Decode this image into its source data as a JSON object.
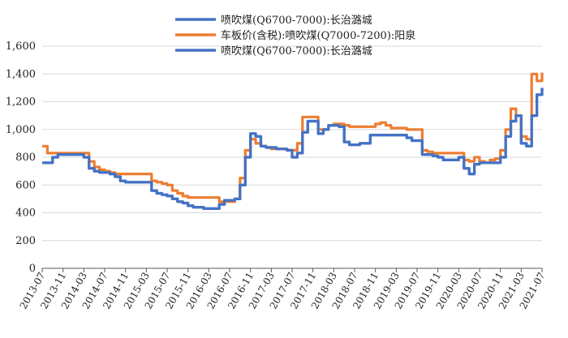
{
  "chart_data": {
    "type": "line",
    "title": "",
    "xlabel": "",
    "ylabel": "",
    "ylim": [
      0,
      1600
    ],
    "yticks": [
      "0",
      "200",
      "400",
      "600",
      "800",
      "1,000",
      "1,200",
      "1,400",
      "1,600"
    ],
    "ytick_values": [
      0,
      200,
      400,
      600,
      800,
      1000,
      1200,
      1400,
      1600
    ],
    "xticks": [
      "2013-07",
      "2013-11",
      "2014-03",
      "2014-07",
      "2014-11",
      "2015-03",
      "2015-07",
      "2015-11",
      "2016-03",
      "2016-07",
      "2016-11",
      "2017-03",
      "2017-07",
      "2017-11",
      "2018-03",
      "2018-07",
      "2018-11",
      "2019-03",
      "2019-07",
      "2019-11",
      "2020-03",
      "2020-07",
      "2020-11",
      "2021-03",
      "2021-07"
    ],
    "grid": "horizontal",
    "legend_position": "top-center",
    "legend": [
      {
        "label": "喷吹煤(Q6700-7000):长治潞城",
        "color": "#4472C4"
      },
      {
        "label": "车板价(含税):喷吹煤(Q7000-7200):阳泉",
        "color": "#ED7D31"
      },
      {
        "label": "喷吹煤(Q6700-7000):长治潞城",
        "color": "#4472C4"
      }
    ],
    "series": [
      {
        "color": "#4472C4",
        "x": [
          "2013-07-01",
          "2013-08-01",
          "2013-09-01",
          "2013-10-01",
          "2013-11-01",
          "2013-12-01",
          "2014-01-01",
          "2014-02-01",
          "2014-03-01",
          "2014-04-01",
          "2014-05-01",
          "2014-06-01",
          "2014-07-01",
          "2014-08-01",
          "2014-09-01",
          "2014-10-01",
          "2014-11-01",
          "2014-12-01",
          "2015-01-01",
          "2015-02-01",
          "2015-03-01",
          "2015-04-01",
          "2015-05-01",
          "2015-06-01",
          "2015-07-01",
          "2015-08-01",
          "2015-09-01",
          "2015-10-01",
          "2015-11-01",
          "2015-12-01",
          "2016-01-01",
          "2016-02-01",
          "2016-03-01",
          "2016-04-01",
          "2016-05-01",
          "2016-06-01",
          "2016-07-01",
          "2016-08-01",
          "2016-09-01",
          "2016-10-01",
          "2016-11-01",
          "2016-12-01",
          "2017-01-01",
          "2017-02-01",
          "2017-03-01",
          "2017-04-01",
          "2017-05-01",
          "2017-06-01",
          "2017-07-01",
          "2017-08-01",
          "2017-09-01",
          "2017-10-01",
          "2017-11-01",
          "2017-12-01",
          "2018-01-01",
          "2018-02-01",
          "2018-03-01",
          "2018-04-01",
          "2018-05-01",
          "2018-06-01",
          "2018-07-01",
          "2018-08-01",
          "2018-09-01",
          "2018-10-01",
          "2018-11-01",
          "2018-12-01",
          "2019-01-01",
          "2019-02-01",
          "2019-03-01",
          "2019-04-01",
          "2019-05-01",
          "2019-06-01",
          "2019-07-01",
          "2019-08-01",
          "2019-09-01",
          "2019-10-01",
          "2019-11-01",
          "2019-12-01",
          "2020-01-01",
          "2020-02-01",
          "2020-03-01",
          "2020-04-01",
          "2020-05-01",
          "2020-06-01",
          "2020-07-01",
          "2020-08-01",
          "2020-09-01",
          "2020-10-01",
          "2020-11-01",
          "2020-12-01",
          "2021-01-01",
          "2021-02-01",
          "2021-03-01",
          "2021-04-01",
          "2021-05-01",
          "2021-06-01",
          "2021-07-01"
        ],
        "values": [
          760,
          760,
          800,
          820,
          820,
          820,
          820,
          820,
          800,
          720,
          700,
          690,
          690,
          680,
          660,
          630,
          620,
          620,
          620,
          620,
          620,
          560,
          540,
          530,
          520,
          500,
          480,
          470,
          450,
          440,
          440,
          430,
          430,
          430,
          460,
          490,
          490,
          500,
          600,
          800,
          970,
          950,
          880,
          870,
          870,
          860,
          860,
          850,
          800,
          830,
          980,
          1060,
          1060,
          970,
          1000,
          1030,
          1030,
          1020,
          910,
          890,
          890,
          900,
          900,
          960,
          960,
          960,
          960,
          960,
          960,
          960,
          940,
          920,
          920,
          820,
          820,
          810,
          800,
          780,
          780,
          780,
          800,
          720,
          680,
          750,
          760,
          760,
          760,
          760,
          800,
          950,
          1060,
          1100,
          900,
          880,
          1100,
          1250,
          1300
        ]
      },
      {
        "color": "#ED7D31",
        "x": [
          "2013-07-01",
          "2013-08-01",
          "2013-09-01",
          "2013-10-01",
          "2013-11-01",
          "2013-12-01",
          "2014-01-01",
          "2014-02-01",
          "2014-03-01",
          "2014-04-01",
          "2014-05-01",
          "2014-06-01",
          "2014-07-01",
          "2014-08-01",
          "2014-09-01",
          "2014-10-01",
          "2014-11-01",
          "2014-12-01",
          "2015-01-01",
          "2015-02-01",
          "2015-03-01",
          "2015-04-01",
          "2015-05-01",
          "2015-06-01",
          "2015-07-01",
          "2015-08-01",
          "2015-09-01",
          "2015-10-01",
          "2015-11-01",
          "2015-12-01",
          "2016-01-01",
          "2016-02-01",
          "2016-03-01",
          "2016-04-01",
          "2016-05-01",
          "2016-06-01",
          "2016-07-01",
          "2016-08-01",
          "2016-09-01",
          "2016-10-01",
          "2016-11-01",
          "2016-12-01",
          "2017-01-01",
          "2017-02-01",
          "2017-03-01",
          "2017-04-01",
          "2017-05-01",
          "2017-06-01",
          "2017-07-01",
          "2017-08-01",
          "2017-09-01",
          "2017-10-01",
          "2017-11-01",
          "2017-12-01",
          "2018-01-01",
          "2018-02-01",
          "2018-03-01",
          "2018-04-01",
          "2018-05-01",
          "2018-06-01",
          "2018-07-01",
          "2018-08-01",
          "2018-09-01",
          "2018-10-01",
          "2018-11-01",
          "2018-12-01",
          "2019-01-01",
          "2019-02-01",
          "2019-03-01",
          "2019-04-01",
          "2019-05-01",
          "2019-06-01",
          "2019-07-01",
          "2019-08-01",
          "2019-09-01",
          "2019-10-01",
          "2019-11-01",
          "2019-12-01",
          "2020-01-01",
          "2020-02-01",
          "2020-03-01",
          "2020-04-01",
          "2020-05-01",
          "2020-06-01",
          "2020-07-01",
          "2020-08-01",
          "2020-09-01",
          "2020-10-01",
          "2020-11-01",
          "2020-12-01",
          "2021-01-01",
          "2021-02-01",
          "2021-03-01",
          "2021-04-01",
          "2021-05-01",
          "2021-06-01",
          "2021-07-01"
        ],
        "values": [
          880,
          830,
          830,
          830,
          830,
          830,
          830,
          830,
          830,
          770,
          730,
          710,
          700,
          690,
          680,
          680,
          680,
          680,
          680,
          680,
          680,
          630,
          620,
          610,
          600,
          560,
          540,
          520,
          510,
          510,
          510,
          510,
          510,
          510,
          480,
          480,
          480,
          500,
          650,
          850,
          930,
          900,
          880,
          870,
          860,
          860,
          860,
          850,
          850,
          900,
          1090,
          1090,
          1090,
          1000,
          1000,
          1030,
          1040,
          1040,
          1030,
          1020,
          1020,
          1020,
          1020,
          1020,
          1040,
          1050,
          1030,
          1010,
          1010,
          1010,
          1000,
          1000,
          1000,
          850,
          840,
          830,
          830,
          830,
          830,
          830,
          830,
          780,
          770,
          800,
          770,
          760,
          780,
          790,
          850,
          1000,
          1150,
          1100,
          950,
          930,
          1400,
          1350,
          1410
        ]
      },
      {
        "color": "#4472C4",
        "x": [
          "2013-07-01",
          "2013-08-01",
          "2013-09-01",
          "2013-10-01",
          "2013-11-01",
          "2013-12-01",
          "2014-01-01",
          "2014-02-01",
          "2014-03-01",
          "2014-04-01",
          "2014-05-01",
          "2014-06-01",
          "2014-07-01",
          "2014-08-01",
          "2014-09-01",
          "2014-10-01",
          "2014-11-01",
          "2014-12-01",
          "2015-01-01",
          "2015-02-01",
          "2015-03-01",
          "2015-04-01",
          "2015-05-01",
          "2015-06-01",
          "2015-07-01",
          "2015-08-01",
          "2015-09-01",
          "2015-10-01",
          "2015-11-01",
          "2015-12-01",
          "2016-01-01",
          "2016-02-01",
          "2016-03-01",
          "2016-04-01",
          "2016-05-01",
          "2016-06-01",
          "2016-07-01",
          "2016-08-01",
          "2016-09-01",
          "2016-10-01",
          "2016-11-01",
          "2016-12-01",
          "2017-01-01",
          "2017-02-01",
          "2017-03-01",
          "2017-04-01",
          "2017-05-01",
          "2017-06-01",
          "2017-07-01",
          "2017-08-01",
          "2017-09-01",
          "2017-10-01",
          "2017-11-01",
          "2017-12-01",
          "2018-01-01",
          "2018-02-01",
          "2018-03-01",
          "2018-04-01",
          "2018-05-01",
          "2018-06-01",
          "2018-07-01",
          "2018-08-01",
          "2018-09-01",
          "2018-10-01",
          "2018-11-01",
          "2018-12-01",
          "2019-01-01",
          "2019-02-01",
          "2019-03-01",
          "2019-04-01",
          "2019-05-01",
          "2019-06-01",
          "2019-07-01",
          "2019-08-01",
          "2019-09-01",
          "2019-10-01",
          "2019-11-01",
          "2019-12-01",
          "2020-01-01",
          "2020-02-01",
          "2020-03-01",
          "2020-04-01",
          "2020-05-01",
          "2020-06-01",
          "2020-07-01",
          "2020-08-01",
          "2020-09-01",
          "2020-10-01",
          "2020-11-01",
          "2020-12-01",
          "2021-01-01",
          "2021-02-01",
          "2021-03-01",
          "2021-04-01",
          "2021-05-01",
          "2021-06-01",
          "2021-07-01"
        ],
        "values": [
          760,
          760,
          800,
          820,
          820,
          820,
          820,
          820,
          800,
          720,
          700,
          690,
          690,
          680,
          660,
          630,
          620,
          620,
          620,
          620,
          620,
          560,
          540,
          530,
          520,
          500,
          480,
          470,
          450,
          440,
          440,
          430,
          430,
          430,
          460,
          490,
          490,
          500,
          600,
          800,
          970,
          950,
          880,
          870,
          870,
          860,
          860,
          850,
          800,
          830,
          980,
          1060,
          1060,
          970,
          1000,
          1030,
          1030,
          1020,
          910,
          890,
          890,
          900,
          900,
          960,
          960,
          960,
          960,
          960,
          960,
          960,
          940,
          920,
          920,
          820,
          820,
          810,
          800,
          780,
          780,
          780,
          800,
          720,
          680,
          750,
          760,
          760,
          760,
          760,
          800,
          950,
          1060,
          1100,
          900,
          880,
          1100,
          1250,
          1300
        ]
      }
    ]
  }
}
